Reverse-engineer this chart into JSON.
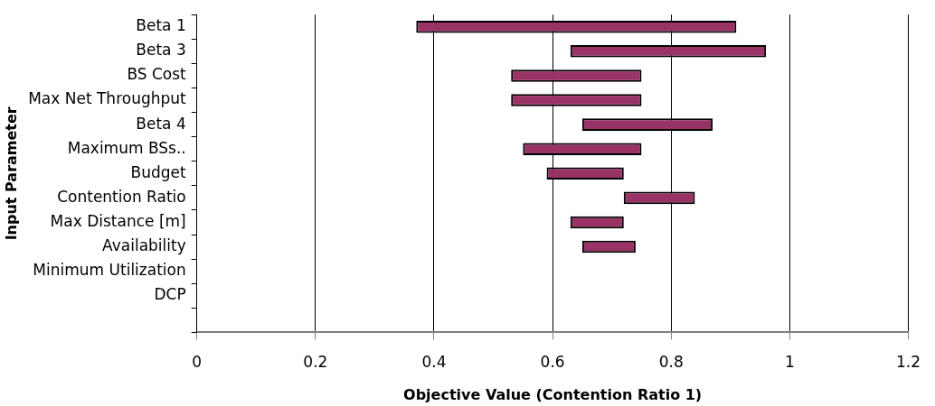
{
  "chart_data": {
    "type": "bar",
    "orientation": "horizontal",
    "xlabel": "Objective Value (Contention Ratio 1)",
    "ylabel": "Input Parameter",
    "categories": [
      "Beta 1",
      "Beta 3",
      "BS Cost",
      "Max Net Throughput",
      "Beta 4",
      "Maximum BSs..",
      "Budget",
      "Contention Ratio",
      "Max Distance [m]",
      "Availability",
      "Minimum Utilization",
      "DCP",
      null
    ],
    "base": [
      0.37,
      0.63,
      0.53,
      0.53,
      0.65,
      0.55,
      0.59,
      0.72,
      0.63,
      0.65,
      null,
      null,
      null
    ],
    "values": [
      0.54,
      0.33,
      0.22,
      0.22,
      0.22,
      0.2,
      0.13,
      0.12,
      0.09,
      0.09,
      null,
      null,
      null
    ],
    "color": "#993366",
    "xlim": [
      0,
      1.2
    ],
    "xticks": [
      0,
      0.2,
      0.4,
      0.6,
      0.8,
      1,
      1.2
    ],
    "grid": "x",
    "legend": false
  }
}
